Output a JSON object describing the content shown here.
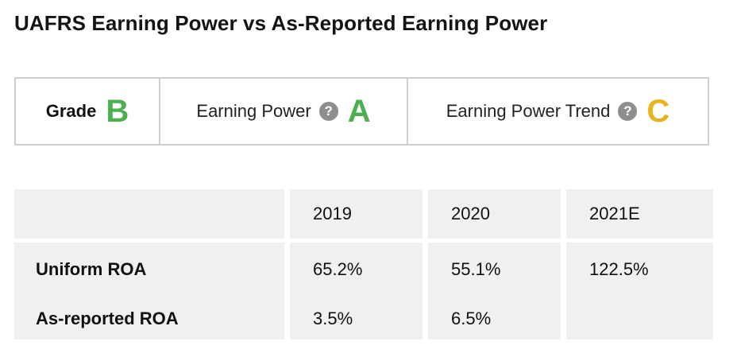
{
  "title": "UAFRS Earning Power vs As-Reported Earning Power",
  "grades": {
    "grade": {
      "label": "Grade",
      "value": "B",
      "color": "#4caf50"
    },
    "earning_power": {
      "label": "Earning Power",
      "value": "A",
      "color": "#4caf50",
      "help_icon": "question-circle-icon"
    },
    "earning_power_trend": {
      "label": "Earning Power Trend",
      "value": "C",
      "color": "#e6b422",
      "help_icon": "question-circle-icon"
    }
  },
  "table": {
    "headers": [
      "",
      "2019",
      "2020",
      "2021E"
    ],
    "rows": [
      {
        "label": "Uniform ROA",
        "values": [
          "65.2%",
          "55.1%",
          "122.5%"
        ]
      },
      {
        "label": "As-reported ROA",
        "values": [
          "3.5%",
          "6.5%",
          ""
        ]
      }
    ]
  },
  "colors": {
    "cell_bg": "#f0f0f0",
    "border": "#cfcfcf",
    "icon_gray": "#8e8e8e"
  }
}
